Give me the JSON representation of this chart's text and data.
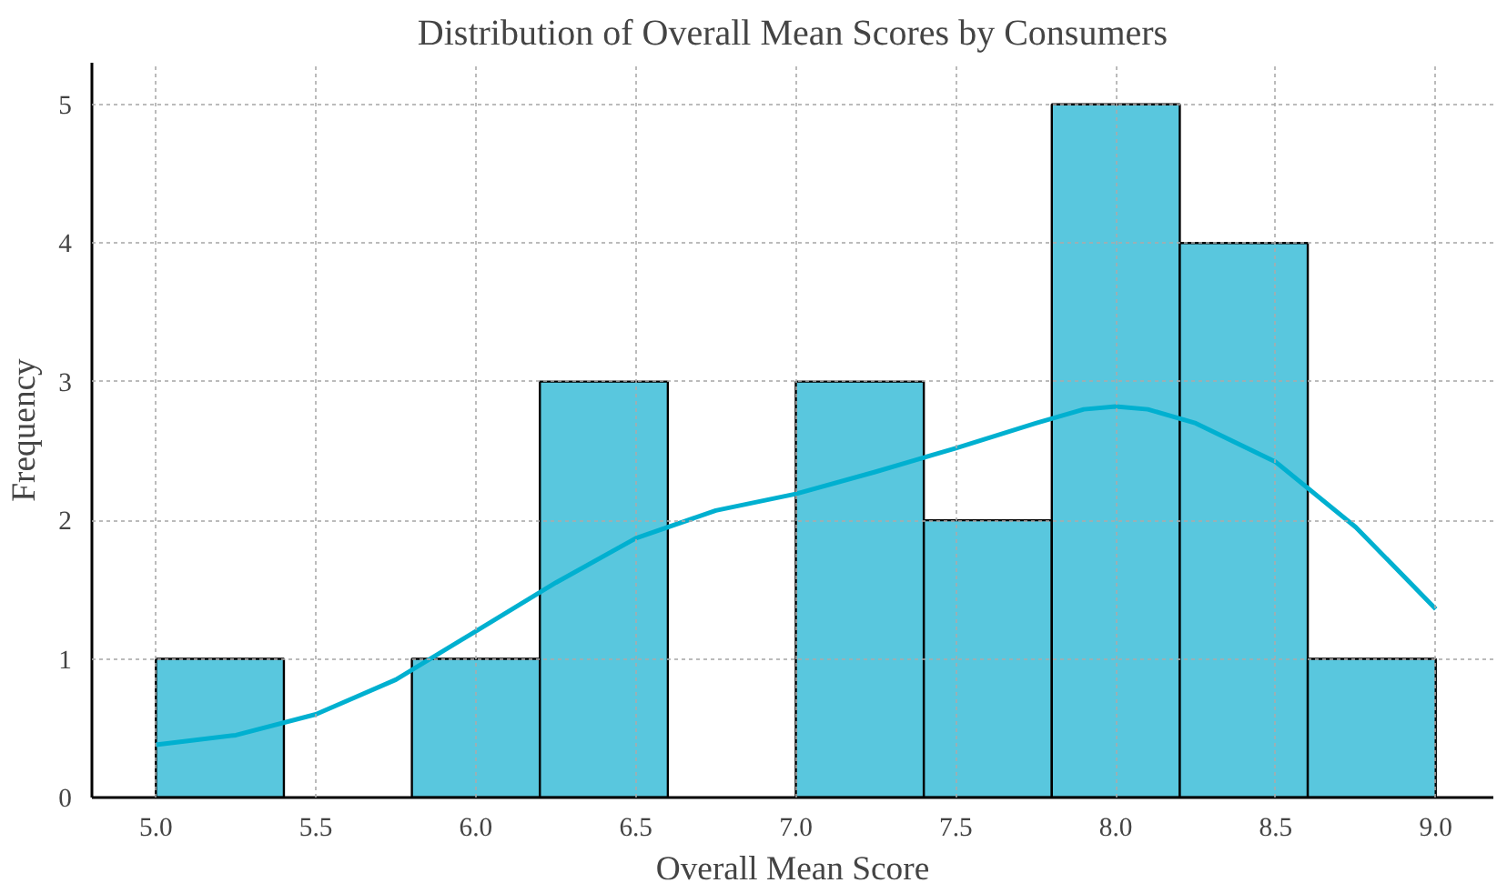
{
  "chart_data": {
    "type": "histogram",
    "title": "Distribution of Overall Mean Scores by Consumers",
    "xlabel": "Overall Mean Score",
    "ylabel": "Frequency",
    "bins": [
      5.0,
      5.4,
      5.8,
      6.2,
      6.6,
      7.0,
      7.4,
      7.8,
      8.2,
      8.6,
      9.0
    ],
    "values": [
      1,
      0,
      1,
      3,
      0,
      3,
      2,
      5,
      4,
      1
    ],
    "color": "#50c4dc",
    "series": [
      {
        "type": "line",
        "color": "#00b0d0",
        "x": [
          5.0,
          5.25,
          5.5,
          5.75,
          6.0,
          6.25,
          6.5,
          6.75,
          7.0,
          7.25,
          7.5,
          7.75,
          7.9,
          8.0,
          8.1,
          8.25,
          8.5,
          8.75,
          9.0
        ],
        "values": [
          0.38,
          0.45,
          0.6,
          0.85,
          1.2,
          1.55,
          1.87,
          2.07,
          2.19,
          2.35,
          2.52,
          2.7,
          2.8,
          2.82,
          2.8,
          2.7,
          2.42,
          1.95,
          1.36
        ]
      }
    ],
    "xlim": [
      4.8,
      9.18
    ],
    "ylim": [
      0,
      5.3
    ],
    "xticks": [
      {
        "value": 5.0,
        "label": "5.0"
      },
      5.5,
      {
        "value": 6.0,
        "label": "6.0"
      },
      6.5,
      {
        "value": 7.0,
        "label": "7.0"
      },
      7.5,
      {
        "value": 8.0,
        "label": "8.0"
      },
      8.5,
      {
        "value": 9.0,
        "label": "9.0"
      }
    ],
    "yticks": [
      0,
      1,
      2,
      3,
      4,
      5
    ],
    "grid": true
  }
}
